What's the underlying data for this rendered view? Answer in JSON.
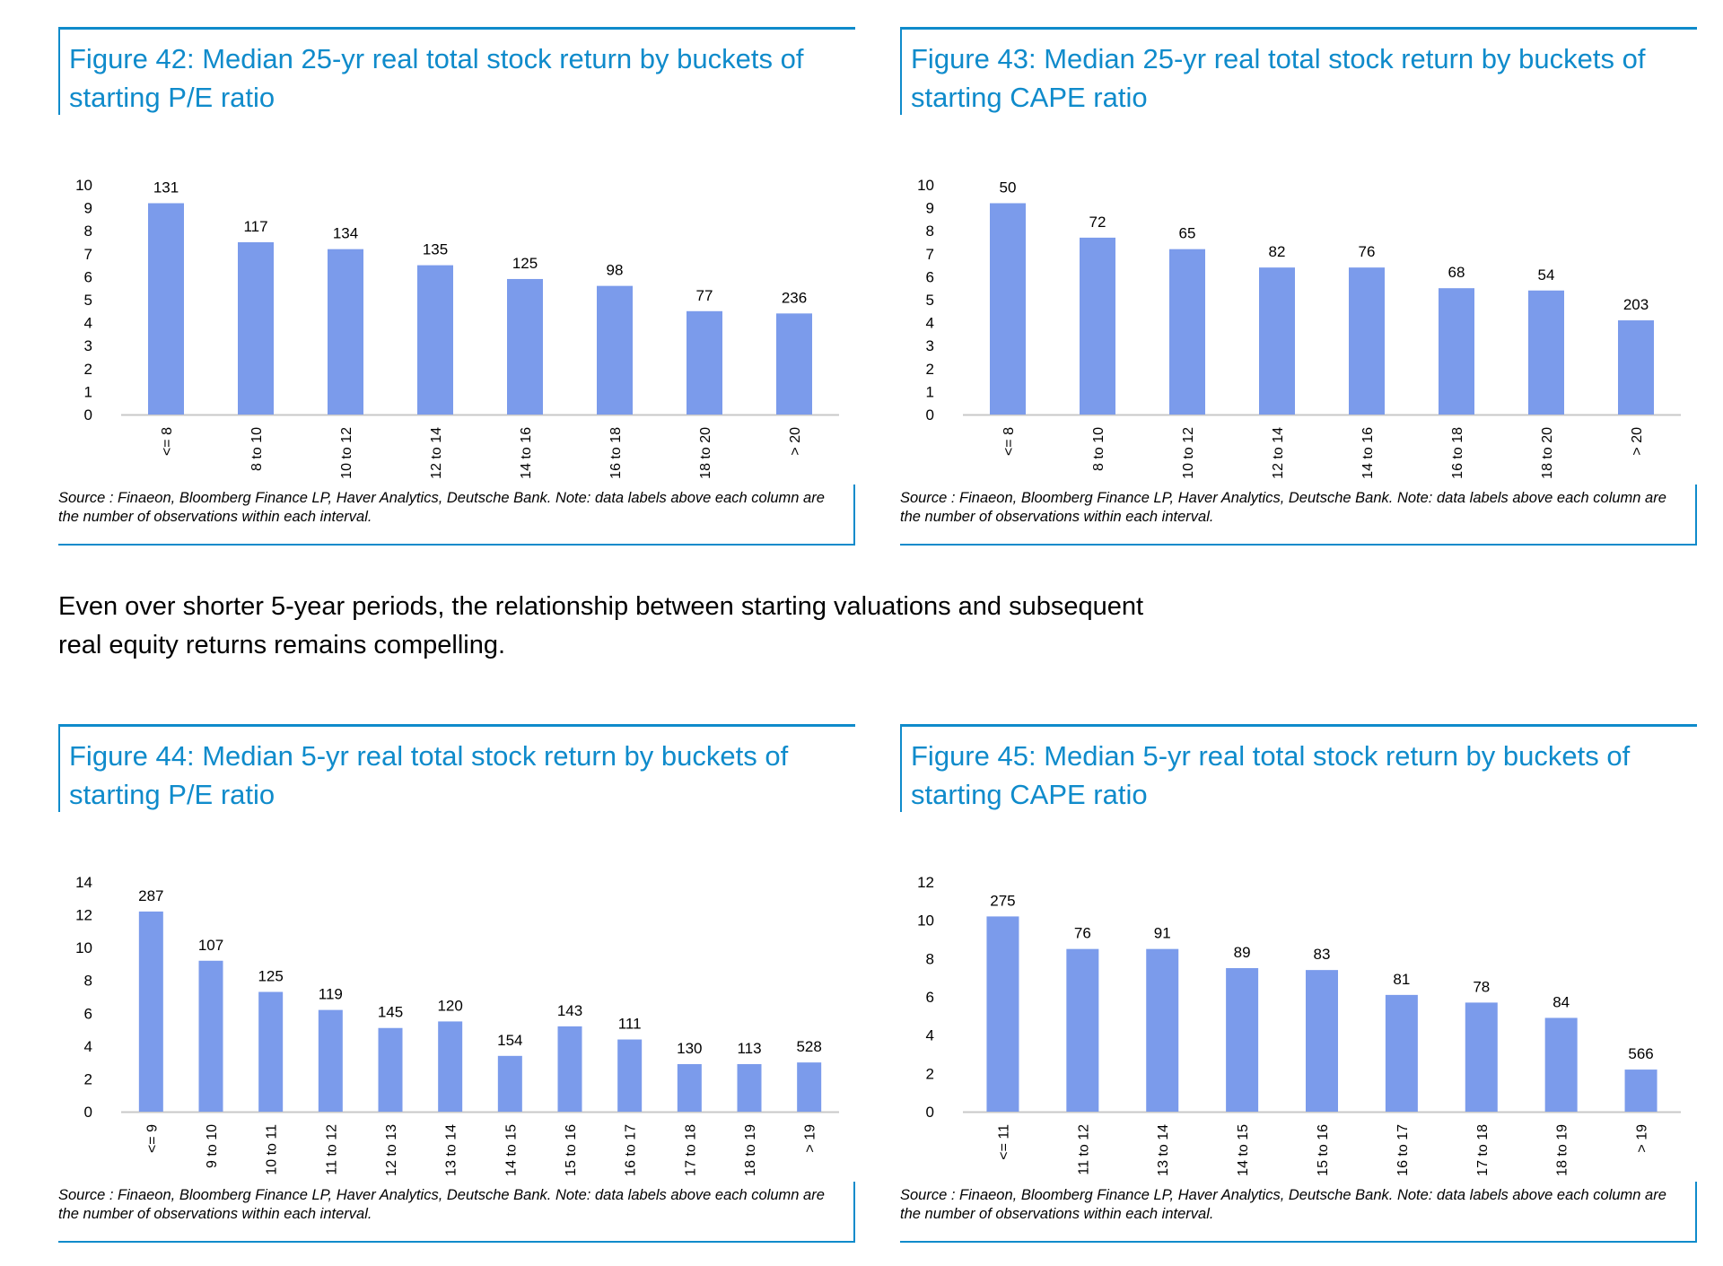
{
  "intro_text": "Even over shorter 5-year periods, the relationship between starting valuations and subsequent real equity returns remains compelling.",
  "colors": {
    "bar": "#7B9BEB",
    "accent": "#0F8BCB",
    "axis": "#C8C8C8"
  },
  "figures": [
    {
      "title": "Figure 42: Median 25-yr real total stock return by buckets of starting P/E ratio",
      "source": "Source : Finaeon, Bloomberg Finance LP, Haver Analytics, Deutsche Bank. Note: data labels above each column are the number of observations within each interval."
    },
    {
      "title": "Figure 43: Median 25-yr real total stock return by buckets of starting CAPE ratio",
      "source": "Source : Finaeon, Bloomberg Finance LP, Haver Analytics, Deutsche Bank. Note: data labels above each column are the number of observations within each interval."
    },
    {
      "title": "Figure 44: Median 5-yr real total stock return by buckets of starting P/E ratio",
      "source": "Source : Finaeon, Bloomberg Finance LP, Haver Analytics, Deutsche Bank. Note: data labels above each column are the number of observations within each interval."
    },
    {
      "title": "Figure 45: Median 5-yr real total stock return by buckets of starting CAPE ratio",
      "source": "Source : Finaeon, Bloomberg Finance LP, Haver Analytics, Deutsche Bank. Note: data labels above each column are the number of observations within each interval."
    }
  ],
  "chart_data": [
    {
      "type": "bar",
      "title": "Figure 42: Median 25-yr real total stock return by buckets of starting P/E ratio",
      "categories": [
        "<= 8",
        "8 to 10",
        "10 to 12",
        "12 to 14",
        "14 to 16",
        "16 to 18",
        "18 to 20",
        "> 20"
      ],
      "values": [
        9.2,
        7.5,
        7.2,
        6.5,
        5.9,
        5.6,
        4.5,
        4.4
      ],
      "data_labels": [
        "131",
        "117",
        "134",
        "135",
        "125",
        "98",
        "77",
        "236"
      ],
      "ylim": [
        0,
        10
      ],
      "yticks": [
        0,
        1,
        2,
        3,
        4,
        5,
        6,
        7,
        8,
        9,
        10
      ],
      "xlabel": "",
      "ylabel": "",
      "grid": false,
      "legend": "none"
    },
    {
      "type": "bar",
      "title": "Figure 43: Median 25-yr real total stock return by buckets of starting CAPE ratio",
      "categories": [
        "<= 8",
        "8 to 10",
        "10 to 12",
        "12 to 14",
        "14 to 16",
        "16 to 18",
        "18 to 20",
        "> 20"
      ],
      "values": [
        9.2,
        7.7,
        7.2,
        6.4,
        6.4,
        5.5,
        5.4,
        4.1
      ],
      "data_labels": [
        "50",
        "72",
        "65",
        "82",
        "76",
        "68",
        "54",
        "203"
      ],
      "ylim": [
        0,
        10
      ],
      "yticks": [
        0,
        1,
        2,
        3,
        4,
        5,
        6,
        7,
        8,
        9,
        10
      ],
      "xlabel": "",
      "ylabel": "",
      "grid": false,
      "legend": "none"
    },
    {
      "type": "bar",
      "title": "Figure 44: Median 5-yr real total stock return by buckets of starting P/E ratio",
      "categories": [
        "<= 9",
        "9 to 10",
        "10 to 11",
        "11 to 12",
        "12 to 13",
        "13 to 14",
        "14 to 15",
        "15 to 16",
        "16 to 17",
        "17 to 18",
        "18 to 19",
        "> 19"
      ],
      "values": [
        12.2,
        9.2,
        7.3,
        6.2,
        5.1,
        5.5,
        3.4,
        5.2,
        4.4,
        2.9,
        2.9,
        3.0
      ],
      "data_labels": [
        "287",
        "107",
        "125",
        "119",
        "145",
        "120",
        "154",
        "143",
        "111",
        "130",
        "113",
        "528"
      ],
      "ylim": [
        0,
        14
      ],
      "yticks": [
        0,
        2,
        4,
        6,
        8,
        10,
        12,
        14
      ],
      "xlabel": "",
      "ylabel": "",
      "grid": false,
      "legend": "none"
    },
    {
      "type": "bar",
      "title": "Figure 45: Median 5-yr real total stock return by buckets of starting CAPE ratio",
      "categories": [
        "<= 11",
        "11 to 12",
        "13 to 14",
        "14 to 15",
        "15 to 16",
        "16 to 17",
        "17 to 18",
        "18 to 19",
        "> 19"
      ],
      "values": [
        10.2,
        8.5,
        8.5,
        7.5,
        7.4,
        6.1,
        5.7,
        4.9,
        2.2
      ],
      "data_labels": [
        "275",
        "76",
        "91",
        "89",
        "83",
        "81",
        "78",
        "84",
        "566"
      ],
      "ylim": [
        0,
        12
      ],
      "yticks": [
        0,
        2,
        4,
        6,
        8,
        10,
        12
      ],
      "xlabel": "",
      "ylabel": "",
      "grid": false,
      "legend": "none"
    }
  ]
}
